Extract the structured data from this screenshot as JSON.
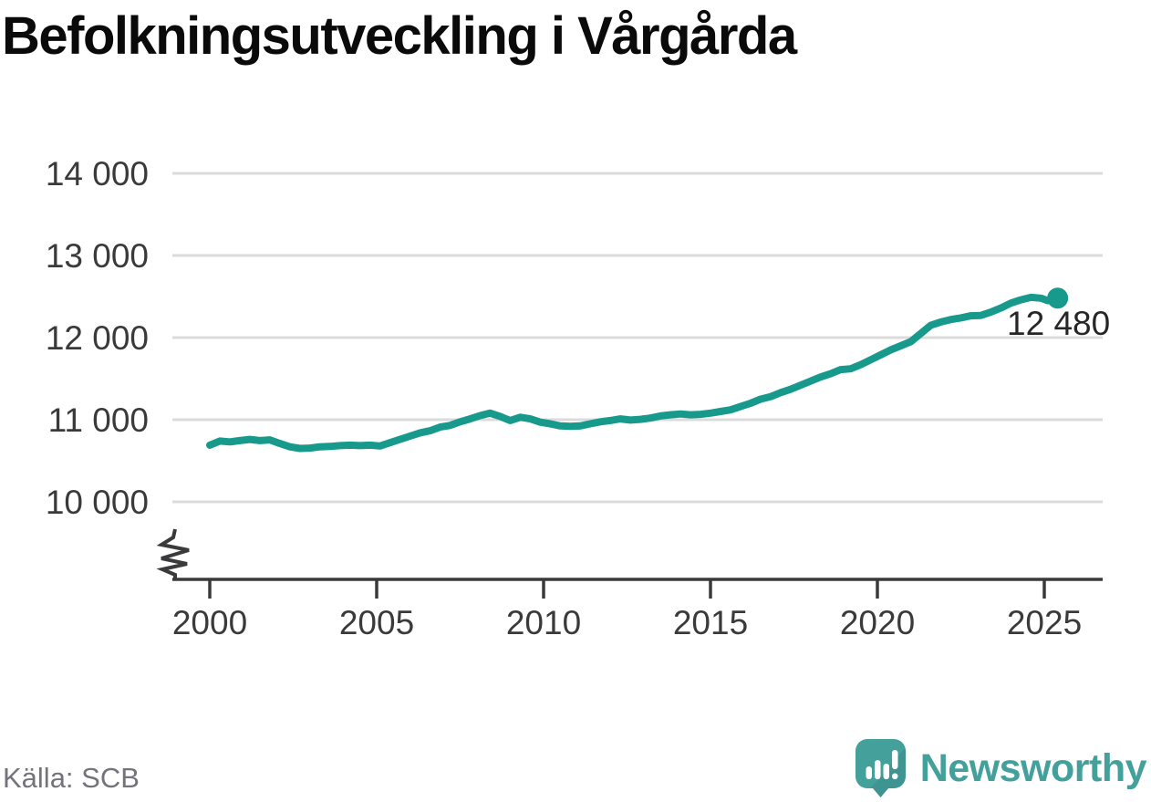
{
  "chart_data": {
    "type": "line",
    "title": "Befolkningsutveckling i Vårgårda",
    "source": "Källa: SCB",
    "x": [
      2000.0,
      2000.3,
      2000.6,
      2000.9,
      2001.2,
      2001.5,
      2001.8,
      2002.1,
      2002.4,
      2002.7,
      2003.0,
      2003.3,
      2003.6,
      2003.9,
      2004.2,
      2004.5,
      2004.8,
      2005.1,
      2005.4,
      2005.7,
      2006.0,
      2006.3,
      2006.6,
      2006.9,
      2007.2,
      2007.5,
      2007.8,
      2008.1,
      2008.4,
      2008.7,
      2009.0,
      2009.3,
      2009.6,
      2009.9,
      2010.2,
      2010.5,
      2010.8,
      2011.1,
      2011.4,
      2011.7,
      2012.0,
      2012.3,
      2012.6,
      2012.9,
      2013.2,
      2013.5,
      2013.8,
      2014.1,
      2014.4,
      2014.7,
      2015.0,
      2015.3,
      2015.6,
      2015.9,
      2016.2,
      2016.5,
      2016.8,
      2017.1,
      2017.4,
      2017.7,
      2018.0,
      2018.3,
      2018.6,
      2018.9,
      2019.2,
      2019.5,
      2019.8,
      2020.1,
      2020.4,
      2020.7,
      2021.0,
      2021.3,
      2021.6,
      2021.9,
      2022.2,
      2022.5,
      2022.8,
      2023.1,
      2023.4,
      2023.7,
      2024.0,
      2024.3,
      2024.6,
      2024.9,
      2025.1,
      2025.4
    ],
    "y": [
      10690,
      10740,
      10730,
      10745,
      10760,
      10745,
      10755,
      10710,
      10670,
      10650,
      10655,
      10670,
      10675,
      10685,
      10690,
      10685,
      10690,
      10680,
      10720,
      10760,
      10800,
      10840,
      10865,
      10910,
      10930,
      10975,
      11010,
      11050,
      11080,
      11040,
      10990,
      11030,
      11010,
      10970,
      10950,
      10925,
      10920,
      10925,
      10950,
      10975,
      10990,
      11010,
      10995,
      11005,
      11020,
      11045,
      11060,
      11070,
      11060,
      11065,
      11080,
      11100,
      11120,
      11160,
      11200,
      11250,
      11280,
      11330,
      11370,
      11420,
      11470,
      11520,
      11560,
      11610,
      11620,
      11670,
      11730,
      11790,
      11850,
      11900,
      11950,
      12050,
      12150,
      12190,
      12220,
      12240,
      12265,
      12270,
      12310,
      12360,
      12420,
      12460,
      12490,
      12480,
      12450,
      12480
    ],
    "end_value": 12480,
    "end_label": "12 480",
    "xticks": [
      2000,
      2005,
      2010,
      2015,
      2020,
      2025
    ],
    "xtick_labels": [
      "2000",
      "2005",
      "2010",
      "2015",
      "2020",
      "2025"
    ],
    "yticks": [
      10000,
      11000,
      12000,
      13000,
      14000
    ],
    "ytick_labels": [
      "10 000",
      "11 000",
      "12 000",
      "13 000",
      "14 000"
    ],
    "ylim_display": [
      10000,
      14000
    ],
    "xlim": [
      2000,
      2025.4
    ],
    "axis_break": true,
    "grid": true,
    "legend": "none",
    "colors": {
      "line": "#17998C",
      "grid": "#DBDBDB",
      "axis": "#3A3A3C",
      "tick_label": "#3A3A3A",
      "end_label": "#262626"
    }
  },
  "logo": {
    "brand": "Newsworthy",
    "icon": "newsworthy-speech-bubble-chart-icon",
    "color": "#43A09B"
  }
}
